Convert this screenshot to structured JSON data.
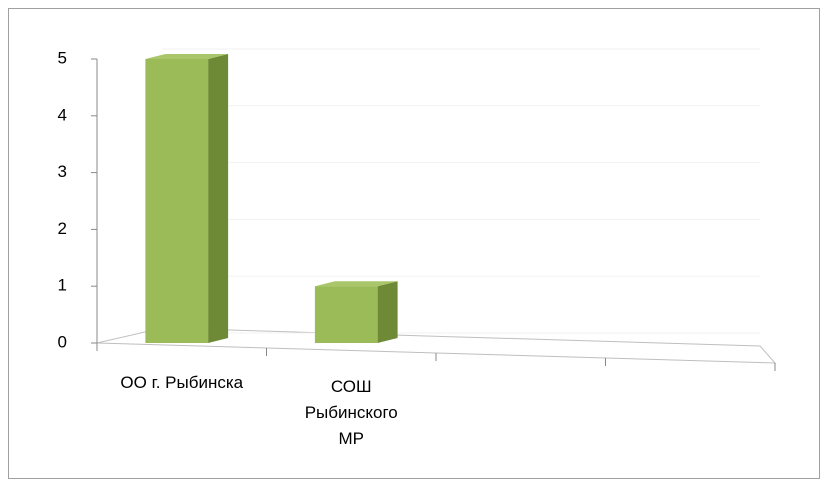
{
  "chart_data": {
    "type": "bar",
    "categories": [
      "ОО г. Рыбинска",
      "СОШ Рыбинского МР",
      null,
      null
    ],
    "values": [
      5,
      1,
      null,
      null
    ],
    "color": "#9bbb59",
    "ylim": [
      0,
      5
    ],
    "yticks": [
      0,
      1,
      2,
      3,
      4,
      5
    ],
    "grid": true
  }
}
